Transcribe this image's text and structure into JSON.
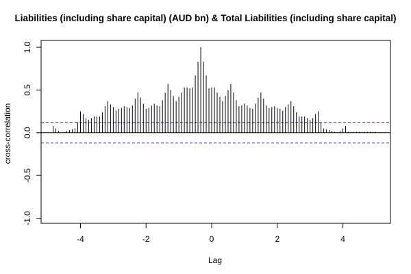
{
  "chart_data": {
    "type": "bar",
    "title": "Liabilities (including share capital) (AUD bn)  & Total Liabilities (including share capital)",
    "xlabel": "Lag",
    "ylabel": "cross-correlation",
    "xlim": [
      -5.2,
      5.45
    ],
    "ylim": [
      -1.06,
      1.08
    ],
    "xticks": [
      -4,
      -2,
      0,
      2,
      4
    ],
    "xtick_labels": [
      "-4",
      "-2",
      "0",
      "2",
      "4"
    ],
    "yticks": [
      -1.0,
      -0.5,
      0.0,
      0.5,
      1.0
    ],
    "ytick_labels": [
      "-1.0",
      "-0.5",
      "0.0",
      "0.5",
      "1.0"
    ],
    "zero_line": 0,
    "confidence_bounds": [
      0.12,
      -0.12
    ],
    "colors": {
      "bars": "#000000",
      "confidence": "#3333cc",
      "frame": "#000000"
    },
    "x": [
      -4.833,
      -4.75,
      -4.667,
      -4.583,
      -4.5,
      -4.417,
      -4.333,
      -4.25,
      -4.167,
      -4.083,
      -4.0,
      -3.917,
      -3.833,
      -3.75,
      -3.667,
      -3.583,
      -3.5,
      -3.417,
      -3.333,
      -3.25,
      -3.167,
      -3.083,
      -3.0,
      -2.917,
      -2.833,
      -2.75,
      -2.667,
      -2.583,
      -2.5,
      -2.417,
      -2.333,
      -2.25,
      -2.167,
      -2.083,
      -2.0,
      -1.917,
      -1.833,
      -1.75,
      -1.667,
      -1.583,
      -1.5,
      -1.417,
      -1.333,
      -1.25,
      -1.167,
      -1.083,
      -1.0,
      -0.917,
      -0.833,
      -0.75,
      -0.667,
      -0.583,
      -0.5,
      -0.417,
      -0.333,
      -0.25,
      -0.167,
      -0.083,
      0.0,
      0.083,
      0.167,
      0.25,
      0.333,
      0.417,
      0.5,
      0.583,
      0.667,
      0.75,
      0.833,
      0.917,
      1.0,
      1.083,
      1.167,
      1.25,
      1.333,
      1.417,
      1.5,
      1.583,
      1.667,
      1.75,
      1.833,
      1.917,
      2.0,
      2.083,
      2.167,
      2.25,
      2.333,
      2.417,
      2.5,
      2.583,
      2.667,
      2.75,
      2.833,
      2.917,
      3.0,
      3.083,
      3.167,
      3.25,
      3.333,
      3.417,
      3.5,
      3.583,
      3.667,
      3.75,
      3.833,
      3.917,
      4.0,
      4.083,
      4.167,
      4.25,
      4.333,
      4.417,
      4.5,
      4.583,
      4.667,
      4.75,
      4.833,
      4.917,
      5.0
    ],
    "values": [
      0.08,
      0.05,
      0.02,
      0.0,
      0.01,
      0.02,
      0.03,
      0.04,
      0.05,
      0.12,
      0.25,
      0.22,
      0.17,
      0.15,
      0.17,
      0.19,
      0.19,
      0.19,
      0.24,
      0.31,
      0.37,
      0.33,
      0.3,
      0.26,
      0.28,
      0.29,
      0.31,
      0.3,
      0.29,
      0.32,
      0.4,
      0.47,
      0.41,
      0.34,
      0.28,
      0.29,
      0.32,
      0.34,
      0.32,
      0.31,
      0.38,
      0.47,
      0.57,
      0.5,
      0.43,
      0.37,
      0.42,
      0.47,
      0.53,
      0.53,
      0.52,
      0.53,
      0.67,
      0.83,
      1.0,
      0.83,
      0.67,
      0.52,
      0.53,
      0.53,
      0.47,
      0.42,
      0.37,
      0.43,
      0.5,
      0.57,
      0.47,
      0.38,
      0.31,
      0.32,
      0.34,
      0.32,
      0.29,
      0.28,
      0.34,
      0.41,
      0.47,
      0.4,
      0.32,
      0.29,
      0.3,
      0.31,
      0.29,
      0.28,
      0.26,
      0.3,
      0.33,
      0.37,
      0.31,
      0.24,
      0.19,
      0.19,
      0.19,
      0.17,
      0.15,
      0.17,
      0.22,
      0.25,
      0.12,
      0.05,
      0.04,
      0.03,
      0.02,
      0.01,
      0.0,
      0.02,
      0.05,
      0.08,
      0.01,
      0.01,
      0.01,
      0.01,
      0.01,
      0.01,
      0.01,
      0.01,
      0.01,
      0.01,
      0.01
    ]
  }
}
